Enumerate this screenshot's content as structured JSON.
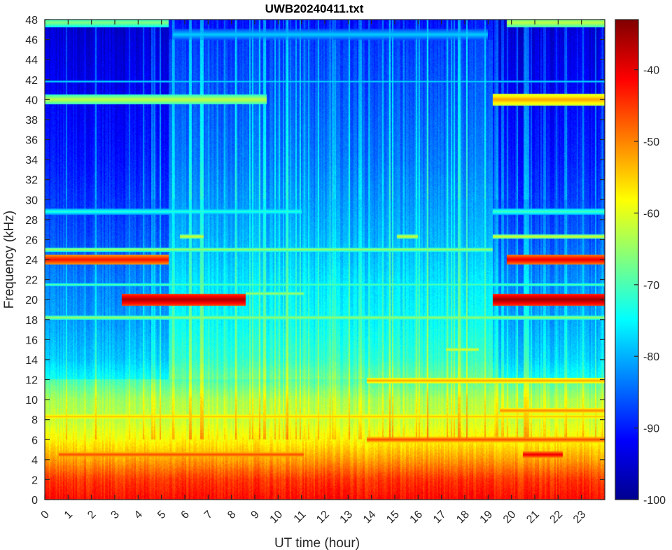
{
  "chart_data": {
    "type": "heatmap",
    "title": "UWB20240411.txt",
    "xlabel": "UT time (hour)",
    "ylabel": "Frequency (kHz)",
    "xlim": [
      0,
      24
    ],
    "ylim": [
      0,
      48
    ],
    "x_ticks": [
      "0",
      "1",
      "2",
      "3",
      "4",
      "5",
      "6",
      "7",
      "8",
      "9",
      "10",
      "11",
      "12",
      "13",
      "14",
      "15",
      "16",
      "17",
      "18",
      "19",
      "20",
      "21",
      "22",
      "23"
    ],
    "y_ticks": [
      "0",
      "2",
      "4",
      "6",
      "8",
      "10",
      "12",
      "14",
      "16",
      "18",
      "20",
      "22",
      "24",
      "26",
      "28",
      "30",
      "32",
      "34",
      "36",
      "38",
      "40",
      "42",
      "44",
      "46",
      "48"
    ],
    "colorbar": {
      "colormap": "jet",
      "clim": [
        -100,
        -33
      ],
      "ticks": [
        "-40",
        "-50",
        "-60",
        "-70",
        "-80",
        "-90",
        "-100"
      ],
      "tick_values": [
        -40,
        -50,
        -60,
        -70,
        -80,
        -90,
        -100
      ]
    },
    "background_profile_db": [
      {
        "f": 0,
        "db": -42
      },
      {
        "f": 2,
        "db": -45
      },
      {
        "f": 4,
        "db": -52
      },
      {
        "f": 6,
        "db": -58
      },
      {
        "f": 8,
        "db": -62
      },
      {
        "f": 10,
        "db": -64
      },
      {
        "f": 12,
        "db": -70
      },
      {
        "f": 14,
        "db": -74
      },
      {
        "f": 18,
        "db": -77
      },
      {
        "f": 22,
        "db": -79
      },
      {
        "f": 26,
        "db": -82
      },
      {
        "f": 30,
        "db": -84
      },
      {
        "f": 34,
        "db": -86
      },
      {
        "f": 40,
        "db": -88
      },
      {
        "f": 46,
        "db": -90
      },
      {
        "f": 48,
        "db": -91
      }
    ],
    "quiet_periods_hour": [
      [
        0,
        5.3
      ],
      [
        19.2,
        24
      ]
    ],
    "bands": [
      {
        "f": 24.0,
        "t0": 0,
        "t1": 5.3,
        "db": -42,
        "width_khz": 0.5
      },
      {
        "f": 24.0,
        "t0": 19.8,
        "t1": 24,
        "db": -40,
        "width_khz": 0.5
      },
      {
        "f": 20.0,
        "t0": 3.3,
        "t1": 8.6,
        "db": -36,
        "width_khz": 0.6
      },
      {
        "f": 20.0,
        "t0": 19.2,
        "t1": 24,
        "db": -35,
        "width_khz": 0.6
      },
      {
        "f": 40.0,
        "t0": 19.2,
        "t1": 24,
        "db": -52,
        "width_khz": 0.6
      },
      {
        "f": 40.0,
        "t0": 0,
        "t1": 9.5,
        "db": -62,
        "width_khz": 0.5
      },
      {
        "f": 47.7,
        "t0": 0,
        "t1": 5.3,
        "db": -66,
        "width_khz": 0.5
      },
      {
        "f": 47.7,
        "t0": 19.8,
        "t1": 24,
        "db": -62,
        "width_khz": 0.5
      },
      {
        "f": 8.3,
        "t0": 0,
        "t1": 24,
        "db": -54,
        "width_khz": 0.3
      },
      {
        "f": 11.9,
        "t0": 13.8,
        "t1": 24,
        "db": -52,
        "width_khz": 0.3
      },
      {
        "f": 4.5,
        "t0": 0.6,
        "t1": 11.1,
        "db": -46,
        "width_khz": 0.3
      },
      {
        "f": 4.5,
        "t0": 20.5,
        "t1": 22.2,
        "db": -40,
        "width_khz": 0.3
      },
      {
        "f": 6.0,
        "t0": 13.8,
        "t1": 24,
        "db": -46,
        "width_khz": 0.3
      },
      {
        "f": 8.9,
        "t0": 19.5,
        "t1": 24,
        "db": -50,
        "width_khz": 0.3
      },
      {
        "f": 18.2,
        "t0": 0,
        "t1": 24,
        "db": -64,
        "width_khz": 0.2
      },
      {
        "f": 25.0,
        "t0": 0,
        "t1": 19.2,
        "db": -64,
        "width_khz": 0.2
      },
      {
        "f": 26.3,
        "t0": 5.8,
        "t1": 6.8,
        "db": -60,
        "width_khz": 0.2
      },
      {
        "f": 26.3,
        "t0": 15.1,
        "t1": 16.0,
        "db": -60,
        "width_khz": 0.2
      },
      {
        "f": 26.3,
        "t0": 19.2,
        "t1": 24,
        "db": -60,
        "width_khz": 0.2
      },
      {
        "f": 15.0,
        "t0": 17.2,
        "t1": 18.6,
        "db": -60,
        "width_khz": 0.2
      },
      {
        "f": 20.6,
        "t0": 8.6,
        "t1": 11.1,
        "db": -64,
        "width_khz": 0.2
      },
      {
        "f": 41.8,
        "t0": 0,
        "t1": 24,
        "db": -76,
        "width_khz": 0.1
      },
      {
        "f": 21.5,
        "t0": 0,
        "t1": 24,
        "db": -68,
        "width_khz": 0.15
      },
      {
        "f": 28.8,
        "t0": 0,
        "t1": 11,
        "db": -72,
        "width_khz": 0.3
      },
      {
        "f": 28.8,
        "t0": 19.2,
        "t1": 24,
        "db": -70,
        "width_khz": 0.3
      },
      {
        "f": 46.5,
        "t0": 5.5,
        "t1": 19,
        "db": -78,
        "width_khz": 0.6
      }
    ]
  }
}
